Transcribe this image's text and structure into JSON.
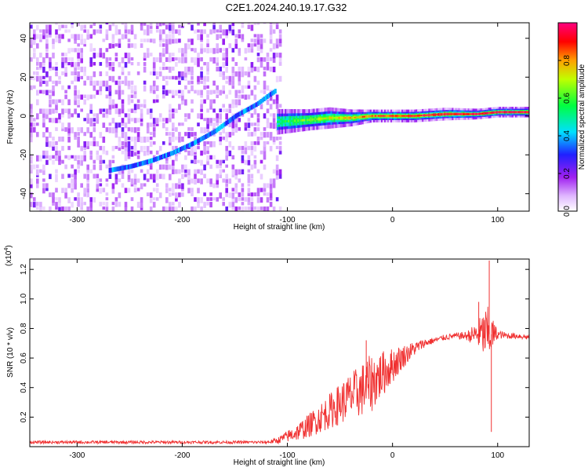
{
  "title": "C2E1.2024.240.19.17.G32",
  "chart_data": [
    {
      "type": "heatmap",
      "xlabel": "Height of straight line (km)",
      "ylabel": "Frequency (Hz)",
      "xlim": [
        -345,
        130
      ],
      "ylim": [
        -49,
        48
      ],
      "xticks": [
        -300,
        -200,
        -100,
        0,
        100
      ],
      "xtick_labels": [
        "-300",
        "-200",
        "-100",
        "0",
        "100"
      ],
      "yticks": [
        -40,
        -20,
        0,
        20,
        40
      ],
      "ytick_labels": [
        "-40",
        "-20",
        "0",
        "20",
        "40"
      ],
      "colorbar": {
        "label": "Normalized spectral amplitude",
        "range": [
          0.0,
          1.0
        ],
        "ticks": [
          0.0,
          0.2,
          0.4,
          0.6,
          0.8
        ],
        "tick_labels": [
          "0.0",
          "0.2",
          "0.4",
          "0.6",
          "0.8"
        ],
        "colors": [
          "#ffffff",
          "#a020f0",
          "#0000ff",
          "#00ffff",
          "#00ff00",
          "#ffff00",
          "#ff8000",
          "#ff0000",
          "#ff00ff"
        ]
      },
      "noise_region_x": [
        -345,
        -105
      ],
      "noise_density": 0.45,
      "ridge": {
        "x": [
          -270,
          -250,
          -230,
          -210,
          -190,
          -170,
          -150,
          -130,
          -120,
          -112
        ],
        "y": [
          -28,
          -26,
          -23,
          -19,
          -14,
          -8,
          0,
          6,
          10,
          13
        ],
        "amplitude": 0.35
      },
      "tone": {
        "x": [
          -110,
          -80,
          -60,
          -40,
          -20,
          0,
          20,
          50,
          80,
          100,
          130
        ],
        "y": [
          -3,
          -2,
          -1,
          -1,
          0,
          0,
          0,
          1,
          1,
          2,
          2
        ],
        "amplitude": [
          0.55,
          0.65,
          0.7,
          0.78,
          0.85,
          0.9,
          0.92,
          0.95,
          0.97,
          1.0,
          1.0
        ],
        "width_hz": [
          6,
          5,
          5,
          4,
          3,
          3,
          3,
          3,
          2.5,
          2.5,
          2.5
        ]
      },
      "grid": false
    },
    {
      "type": "line",
      "xlabel": "Height of straight line (km)",
      "ylabel": "SNR (10 * v/v)",
      "y_multiplier_label": "(x10",
      "y_multiplier_exp": "4",
      "y_multiplier_close": ")",
      "xlim": [
        -345,
        130
      ],
      "ylim": [
        0.0,
        1.27
      ],
      "xticks": [
        -300,
        -200,
        -100,
        0,
        100
      ],
      "xtick_labels": [
        "-300",
        "-200",
        "-100",
        "0",
        "100"
      ],
      "yticks": [
        0.2,
        0.4,
        0.6,
        0.8,
        1.0,
        1.2
      ],
      "ytick_labels": [
        "0.2",
        "0.4",
        "0.6",
        "0.8",
        "1.0",
        "1.2"
      ],
      "series": [
        {
          "color": "#f03030",
          "x": [
            -345,
            -300,
            -250,
            -200,
            -150,
            -120,
            -110,
            -100,
            -90,
            -80,
            -70,
            -60,
            -50,
            -40,
            -30,
            -20,
            -10,
            0,
            10,
            20,
            30,
            40,
            50,
            60,
            70,
            80,
            90,
            100,
            110,
            120,
            130
          ],
          "y": [
            0.03,
            0.03,
            0.03,
            0.03,
            0.03,
            0.03,
            0.04,
            0.07,
            0.1,
            0.14,
            0.19,
            0.24,
            0.29,
            0.34,
            0.38,
            0.43,
            0.49,
            0.55,
            0.61,
            0.66,
            0.7,
            0.72,
            0.74,
            0.75,
            0.75,
            0.76,
            0.76,
            0.76,
            0.75,
            0.75,
            0.74
          ],
          "noise": [
            0.01,
            0.01,
            0.01,
            0.01,
            0.01,
            0.01,
            0.02,
            0.04,
            0.06,
            0.08,
            0.1,
            0.12,
            0.14,
            0.16,
            0.18,
            0.2,
            0.16,
            0.12,
            0.08,
            0.05,
            0.03,
            0.02,
            0.02,
            0.02,
            0.03,
            0.08,
            0.2,
            0.03,
            0.02,
            0.02,
            0.02
          ]
        }
      ],
      "spikes": [
        {
          "x": -25,
          "y": 0.72
        },
        {
          "x": 82,
          "y": 0.98
        },
        {
          "x": 92,
          "y": 1.26
        },
        {
          "x": 94,
          "y": 0.1
        }
      ],
      "grid": false
    }
  ]
}
